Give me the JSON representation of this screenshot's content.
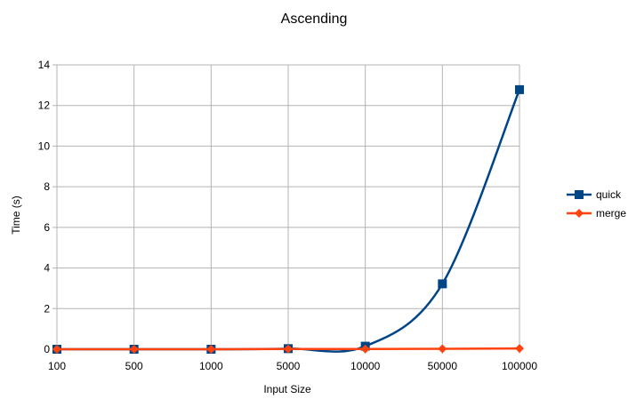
{
  "chart_data": {
    "type": "line",
    "title": "Ascending",
    "xlabel": "Input Size",
    "ylabel": "Time (s)",
    "categories": [
      "100",
      "500",
      "1000",
      "5000",
      "10000",
      "50000",
      "100000"
    ],
    "ylim": [
      0,
      14
    ],
    "yticks": [
      "0",
      "2",
      "4",
      "6",
      "8",
      "10",
      "12",
      "14"
    ],
    "grid": true,
    "legend_position": "right",
    "series": [
      {
        "name": "quick",
        "color": "#004586",
        "marker": "square",
        "values": [
          0.0,
          0.0,
          0.0,
          0.03,
          0.15,
          3.22,
          12.78
        ]
      },
      {
        "name": "merge",
        "color": "#ff420e",
        "marker": "diamond",
        "values": [
          0.0,
          0.0,
          0.0,
          0.01,
          0.01,
          0.02,
          0.04
        ]
      }
    ]
  }
}
